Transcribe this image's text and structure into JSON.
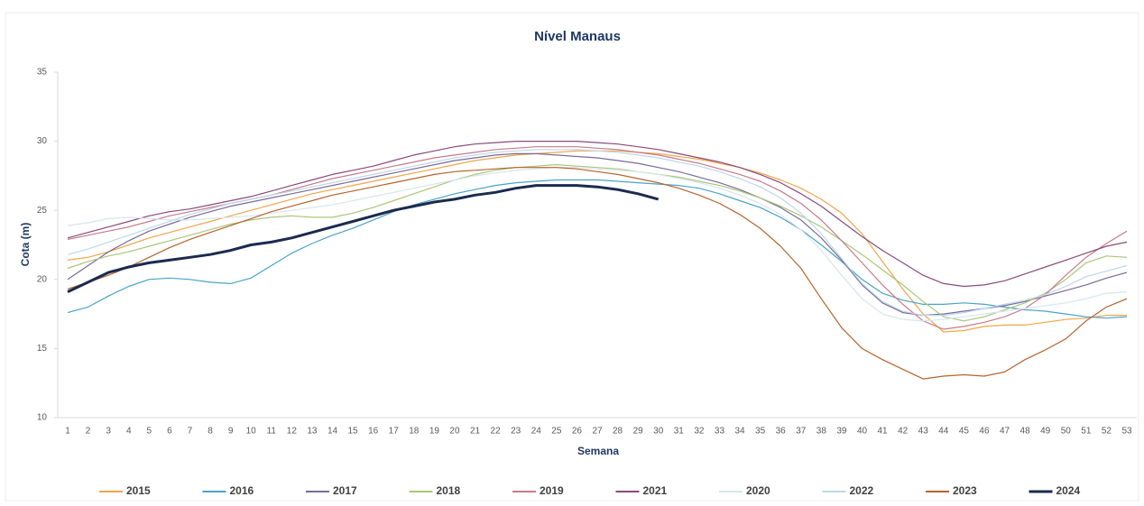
{
  "chart_data": {
    "type": "line",
    "title": "Nível Manaus",
    "xlabel": "Semana",
    "ylabel": "Cota (m)",
    "categories": [
      1,
      2,
      3,
      4,
      5,
      6,
      7,
      8,
      9,
      10,
      11,
      12,
      13,
      14,
      15,
      16,
      17,
      18,
      19,
      20,
      21,
      22,
      23,
      24,
      25,
      26,
      27,
      28,
      29,
      30,
      31,
      32,
      33,
      34,
      35,
      36,
      37,
      38,
      39,
      40,
      41,
      42,
      43,
      44,
      45,
      46,
      47,
      48,
      49,
      50,
      51,
      52,
      53
    ],
    "ylim": [
      10,
      35
    ],
    "yticks": [
      10,
      15,
      20,
      25,
      30,
      35
    ],
    "grid": false,
    "legend": "bottom",
    "series": [
      {
        "name": "2015",
        "color": "#f0a64a",
        "line_width": 1.2,
        "values": [
          21.4,
          21.6,
          22.0,
          22.5,
          23.0,
          23.4,
          23.8,
          24.2,
          24.6,
          25.0,
          25.4,
          25.8,
          26.2,
          26.5,
          26.8,
          27.1,
          27.4,
          27.7,
          28.0,
          28.3,
          28.6,
          28.8,
          29.0,
          29.1,
          29.2,
          29.3,
          29.3,
          29.3,
          29.2,
          29.1,
          28.9,
          28.7,
          28.4,
          28.1,
          27.7,
          27.2,
          26.6,
          25.8,
          24.8,
          23.3,
          21.3,
          19.3,
          17.5,
          16.2,
          16.3,
          16.6,
          16.7,
          16.7,
          16.9,
          17.1,
          17.2,
          17.4,
          17.4
        ]
      },
      {
        "name": "2016",
        "color": "#4aa3c8",
        "line_width": 1.2,
        "values": [
          17.6,
          18.0,
          18.8,
          19.5,
          20.0,
          20.1,
          20.0,
          19.8,
          19.7,
          20.1,
          21.0,
          21.9,
          22.6,
          23.2,
          23.7,
          24.3,
          24.9,
          25.4,
          25.8,
          26.2,
          26.5,
          26.8,
          27.0,
          27.1,
          27.2,
          27.2,
          27.2,
          27.1,
          27.0,
          26.9,
          26.8,
          26.6,
          26.2,
          25.7,
          25.2,
          24.5,
          23.6,
          22.5,
          21.3,
          20.0,
          19.0,
          18.5,
          18.2,
          18.2,
          18.3,
          18.2,
          18.0,
          17.8,
          17.7,
          17.5,
          17.3,
          17.2,
          17.3
        ]
      },
      {
        "name": "2017",
        "color": "#7a6a9a",
        "line_width": 1.2,
        "values": [
          20.0,
          21.0,
          22.0,
          22.8,
          23.5,
          24.0,
          24.5,
          24.9,
          25.3,
          25.6,
          25.9,
          26.2,
          26.5,
          26.8,
          27.1,
          27.4,
          27.7,
          28.0,
          28.3,
          28.6,
          28.8,
          29.0,
          29.1,
          29.1,
          29.0,
          28.9,
          28.8,
          28.6,
          28.4,
          28.1,
          27.8,
          27.4,
          27.0,
          26.5,
          25.9,
          25.2,
          24.3,
          23.0,
          21.4,
          19.6,
          18.3,
          17.6,
          17.4,
          17.5,
          17.7,
          17.9,
          18.1,
          18.4,
          18.8,
          19.2,
          19.6,
          20.1,
          20.5
        ]
      },
      {
        "name": "2018",
        "color": "#a9c77a",
        "line_width": 1.2,
        "values": [
          20.8,
          21.3,
          21.7,
          22.0,
          22.4,
          22.8,
          23.2,
          23.6,
          24.0,
          24.3,
          24.5,
          24.6,
          24.5,
          24.5,
          24.8,
          25.2,
          25.7,
          26.2,
          26.7,
          27.2,
          27.6,
          27.9,
          28.1,
          28.2,
          28.3,
          28.2,
          28.1,
          28.0,
          27.8,
          27.6,
          27.4,
          27.1,
          26.8,
          26.4,
          25.9,
          25.3,
          24.6,
          23.8,
          22.8,
          21.8,
          20.7,
          19.6,
          18.4,
          17.3,
          17.0,
          17.3,
          17.8,
          18.3,
          19.0,
          20.0,
          21.2,
          21.7,
          21.6
        ]
      },
      {
        "name": "2019",
        "color": "#c77a8a",
        "line_width": 1.2,
        "values": [
          22.9,
          23.2,
          23.5,
          23.8,
          24.2,
          24.6,
          24.9,
          25.2,
          25.5,
          25.8,
          26.1,
          26.5,
          26.9,
          27.3,
          27.6,
          27.9,
          28.2,
          28.5,
          28.8,
          29.0,
          29.2,
          29.4,
          29.5,
          29.6,
          29.6,
          29.6,
          29.5,
          29.4,
          29.2,
          29.0,
          28.7,
          28.4,
          28.0,
          27.6,
          27.1,
          26.4,
          25.5,
          24.3,
          22.8,
          21.2,
          19.6,
          18.2,
          17.0,
          16.4,
          16.6,
          16.9,
          17.3,
          17.9,
          18.9,
          20.3,
          21.6,
          22.6,
          23.5
        ]
      },
      {
        "name": "2021",
        "color": "#8a4a7a",
        "line_width": 1.2,
        "values": [
          23.0,
          23.4,
          23.8,
          24.2,
          24.6,
          24.9,
          25.1,
          25.4,
          25.7,
          26.0,
          26.4,
          26.8,
          27.2,
          27.6,
          27.9,
          28.2,
          28.6,
          29.0,
          29.3,
          29.6,
          29.8,
          29.9,
          30.0,
          30.0,
          30.0,
          30.0,
          29.9,
          29.8,
          29.6,
          29.4,
          29.1,
          28.8,
          28.5,
          28.1,
          27.6,
          27.0,
          26.2,
          25.3,
          24.2,
          23.1,
          22.1,
          21.2,
          20.3,
          19.7,
          19.5,
          19.6,
          19.9,
          20.4,
          20.9,
          21.4,
          21.9,
          22.4,
          22.7
        ]
      },
      {
        "name": "2020",
        "color": "#d6e6ee",
        "line_width": 1.2,
        "values": [
          23.9,
          24.1,
          24.4,
          24.5,
          24.4,
          24.3,
          24.3,
          24.4,
          24.5,
          24.6,
          24.8,
          25.0,
          25.2,
          25.4,
          25.7,
          26.0,
          26.3,
          26.6,
          26.9,
          27.2,
          27.5,
          27.7,
          27.9,
          28.0,
          28.1,
          28.1,
          28.0,
          27.9,
          27.8,
          27.6,
          27.3,
          27.0,
          26.6,
          26.1,
          25.5,
          24.7,
          23.6,
          22.1,
          20.3,
          18.6,
          17.5,
          17.1,
          17.0,
          17.1,
          17.3,
          17.5,
          17.7,
          17.9,
          18.1,
          18.3,
          18.6,
          19.0,
          19.1
        ]
      },
      {
        "name": "2022",
        "color": "#bcd8e8",
        "line_width": 1.2,
        "values": [
          21.8,
          22.2,
          22.7,
          23.2,
          23.7,
          24.2,
          24.7,
          25.1,
          25.5,
          25.8,
          26.1,
          26.4,
          26.7,
          27.0,
          27.3,
          27.6,
          27.9,
          28.2,
          28.5,
          28.8,
          29.0,
          29.2,
          29.3,
          29.4,
          29.4,
          29.4,
          29.3,
          29.2,
          29.0,
          28.8,
          28.5,
          28.2,
          27.8,
          27.3,
          26.7,
          25.9,
          24.8,
          23.3,
          21.5,
          19.7,
          18.4,
          17.7,
          17.4,
          17.4,
          17.6,
          17.9,
          18.2,
          18.5,
          18.9,
          19.5,
          20.2,
          20.6,
          21.0
        ]
      },
      {
        "name": "2023",
        "color": "#b5652e",
        "line_width": 1.2,
        "values": [
          19.3,
          19.8,
          20.3,
          20.9,
          21.6,
          22.3,
          22.9,
          23.4,
          23.9,
          24.4,
          24.9,
          25.3,
          25.7,
          26.1,
          26.4,
          26.7,
          27.0,
          27.3,
          27.6,
          27.8,
          27.9,
          28.0,
          28.1,
          28.1,
          28.1,
          28.0,
          27.8,
          27.6,
          27.3,
          27.0,
          26.6,
          26.1,
          25.5,
          24.7,
          23.7,
          22.4,
          20.8,
          18.6,
          16.5,
          15.0,
          14.2,
          13.5,
          12.8,
          13.0,
          13.1,
          13.0,
          13.3,
          14.2,
          14.9,
          15.7,
          17.0,
          18.0,
          18.6
        ]
      },
      {
        "name": "2024",
        "color": "#1b2a4e",
        "line_width": 3,
        "values": [
          19.1,
          19.8,
          20.5,
          20.9,
          21.2,
          21.4,
          21.6,
          21.8,
          22.1,
          22.5,
          22.7,
          23.0,
          23.4,
          23.8,
          24.2,
          24.6,
          25.0,
          25.3,
          25.6,
          25.8,
          26.1,
          26.3,
          26.6,
          26.8,
          26.8,
          26.8,
          26.7,
          26.5,
          26.2,
          25.8,
          null,
          null,
          null,
          null,
          null,
          null,
          null,
          null,
          null,
          null,
          null,
          null,
          null,
          null,
          null,
          null,
          null,
          null,
          null,
          null,
          null,
          null,
          null
        ]
      }
    ]
  }
}
